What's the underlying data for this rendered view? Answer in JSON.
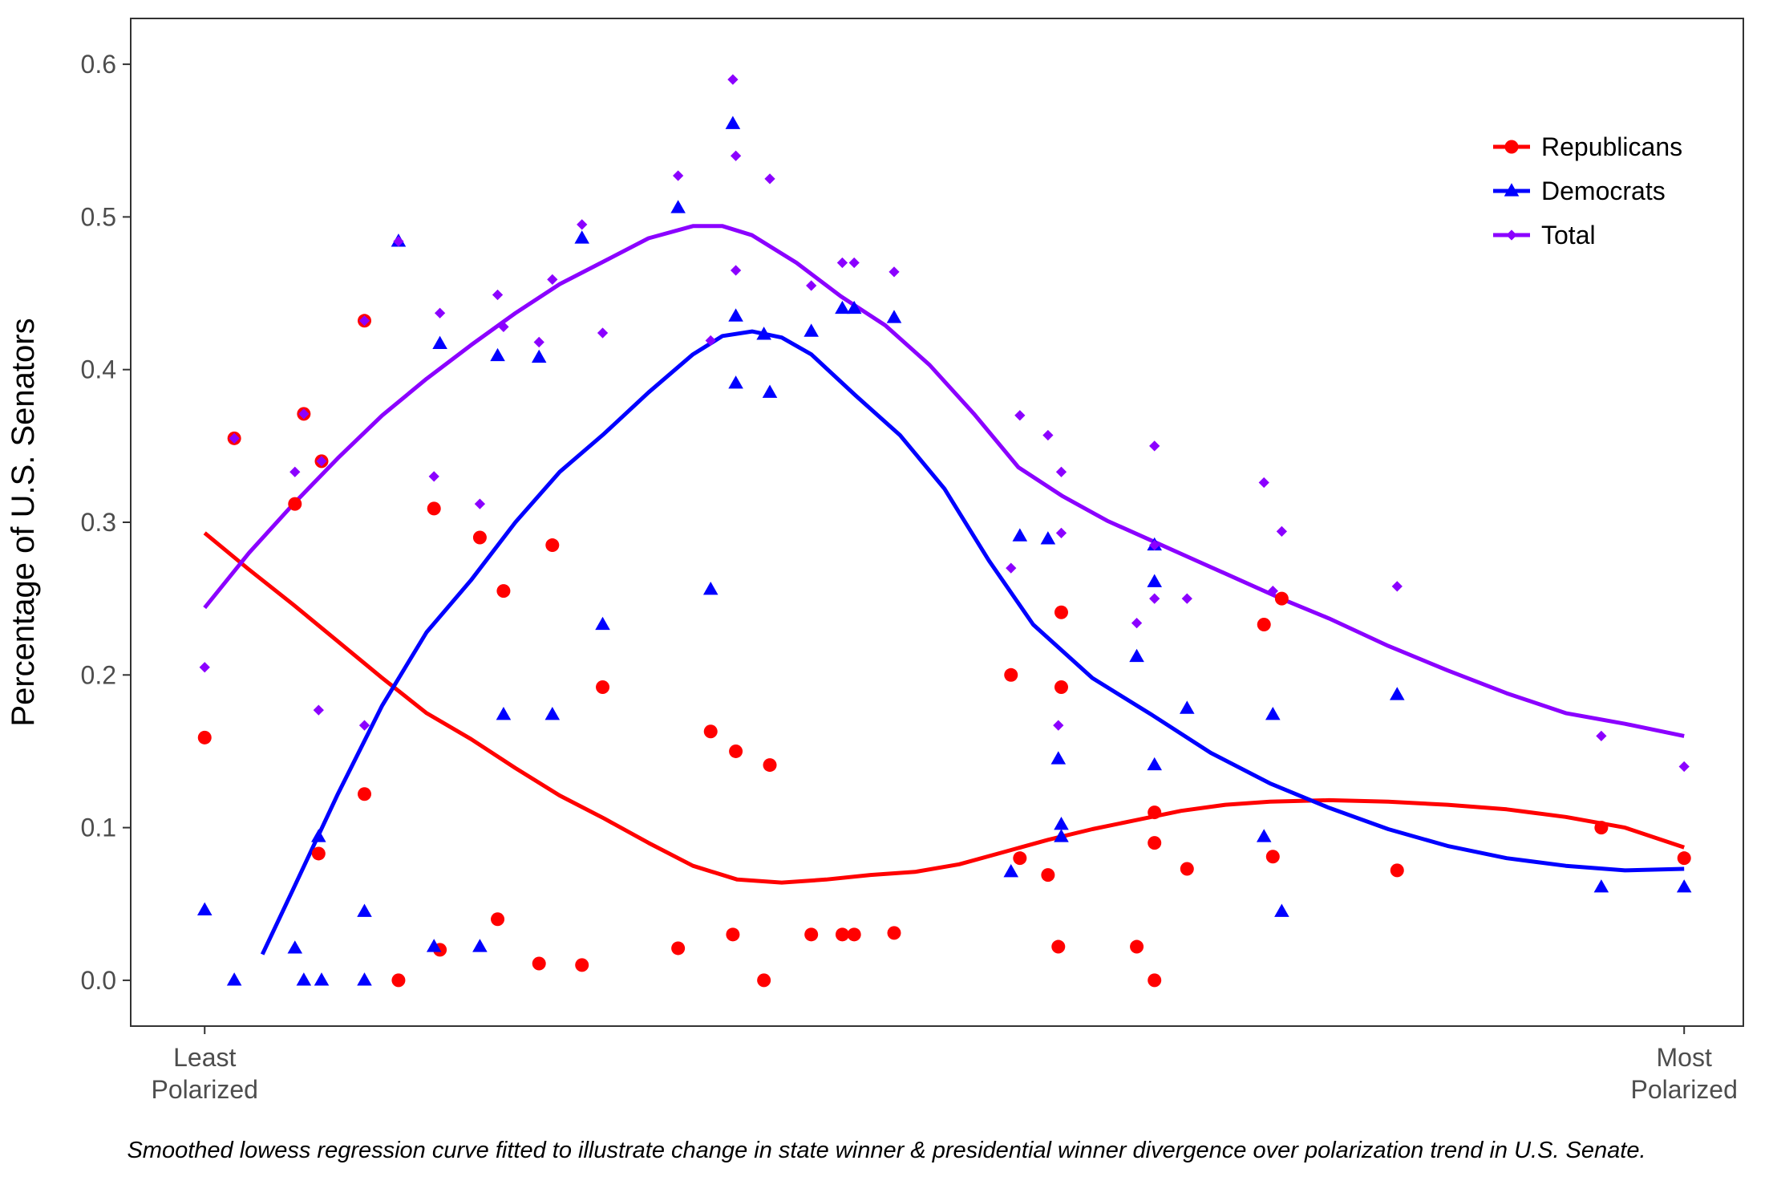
{
  "caption": "Smoothed lowess regression curve fitted to illustrate change in state winner & presidential winner divergence over polarization trend in U.S. Senate.",
  "colors": {
    "Republicans": "#ff0000",
    "Democrats": "#0000ff",
    "Total": "#8b00ff"
  },
  "chart_data": {
    "type": "scatter",
    "title": "",
    "ylabel": "Percentage of U.S. Senators",
    "xlabel": "",
    "x_tick_labels": [
      {
        "x": 0,
        "lines": [
          "Least",
          "Polarized"
        ]
      },
      {
        "x": 1,
        "lines": [
          "Most",
          "Polarized"
        ]
      }
    ],
    "xlim": [
      -0.05,
      1.04
    ],
    "ylim": [
      -0.03,
      0.63
    ],
    "yticks": [
      0.0,
      0.1,
      0.2,
      0.3,
      0.4,
      0.5,
      0.6
    ],
    "ytick_labels": [
      "0.0",
      "0.1",
      "0.2",
      "0.3",
      "0.4",
      "0.5",
      "0.6"
    ],
    "grid": false,
    "legend_position": "top-right",
    "series": [
      {
        "name": "Republicans",
        "marker": "circle",
        "points": [
          [
            0.0,
            0.159
          ],
          [
            0.02,
            0.355
          ],
          [
            0.061,
            0.312
          ],
          [
            0.067,
            0.371
          ],
          [
            0.077,
            0.083
          ],
          [
            0.079,
            0.34
          ],
          [
            0.108,
            0.432
          ],
          [
            0.108,
            0.122
          ],
          [
            0.131,
            0.0
          ],
          [
            0.155,
            0.309
          ],
          [
            0.159,
            0.02
          ],
          [
            0.186,
            0.29
          ],
          [
            0.198,
            0.04
          ],
          [
            0.202,
            0.255
          ],
          [
            0.226,
            0.011
          ],
          [
            0.235,
            0.285
          ],
          [
            0.255,
            0.01
          ],
          [
            0.269,
            0.192
          ],
          [
            0.32,
            0.021
          ],
          [
            0.342,
            0.163
          ],
          [
            0.357,
            0.03
          ],
          [
            0.359,
            0.15
          ],
          [
            0.378,
            0.0
          ],
          [
            0.382,
            0.141
          ],
          [
            0.41,
            0.03
          ],
          [
            0.431,
            0.03
          ],
          [
            0.439,
            0.03
          ],
          [
            0.466,
            0.031
          ],
          [
            0.545,
            0.2
          ],
          [
            0.551,
            0.08
          ],
          [
            0.57,
            0.069
          ],
          [
            0.577,
            0.022
          ],
          [
            0.579,
            0.241
          ],
          [
            0.579,
            0.192
          ],
          [
            0.63,
            0.022
          ],
          [
            0.642,
            0.11
          ],
          [
            0.642,
            0.09
          ],
          [
            0.642,
            0.0
          ],
          [
            0.664,
            0.073
          ],
          [
            0.716,
            0.233
          ],
          [
            0.722,
            0.081
          ],
          [
            0.728,
            0.25
          ],
          [
            0.806,
            0.072
          ],
          [
            0.944,
            0.1
          ],
          [
            1.0,
            0.08
          ]
        ],
        "smooth": [
          [
            0.0,
            0.293
          ],
          [
            0.03,
            0.269
          ],
          [
            0.06,
            0.246
          ],
          [
            0.09,
            0.222
          ],
          [
            0.12,
            0.198
          ],
          [
            0.15,
            0.175
          ],
          [
            0.18,
            0.158
          ],
          [
            0.21,
            0.139
          ],
          [
            0.24,
            0.121
          ],
          [
            0.27,
            0.106
          ],
          [
            0.3,
            0.09
          ],
          [
            0.33,
            0.075
          ],
          [
            0.36,
            0.066
          ],
          [
            0.39,
            0.064
          ],
          [
            0.42,
            0.066
          ],
          [
            0.45,
            0.069
          ],
          [
            0.48,
            0.071
          ],
          [
            0.51,
            0.076
          ],
          [
            0.54,
            0.084
          ],
          [
            0.57,
            0.092
          ],
          [
            0.6,
            0.099
          ],
          [
            0.63,
            0.105
          ],
          [
            0.66,
            0.111
          ],
          [
            0.69,
            0.115
          ],
          [
            0.72,
            0.117
          ],
          [
            0.76,
            0.118
          ],
          [
            0.8,
            0.117
          ],
          [
            0.84,
            0.115
          ],
          [
            0.88,
            0.112
          ],
          [
            0.92,
            0.107
          ],
          [
            0.96,
            0.1
          ],
          [
            1.0,
            0.087
          ]
        ]
      },
      {
        "name": "Democrats",
        "marker": "triangle",
        "points": [
          [
            0.0,
            0.046
          ],
          [
            0.02,
            0.0
          ],
          [
            0.061,
            0.021
          ],
          [
            0.067,
            0.0
          ],
          [
            0.077,
            0.094
          ],
          [
            0.079,
            0.0
          ],
          [
            0.108,
            0.045
          ],
          [
            0.108,
            0.0
          ],
          [
            0.131,
            0.484
          ],
          [
            0.155,
            0.022
          ],
          [
            0.159,
            0.417
          ],
          [
            0.186,
            0.022
          ],
          [
            0.198,
            0.409
          ],
          [
            0.202,
            0.174
          ],
          [
            0.226,
            0.408
          ],
          [
            0.235,
            0.174
          ],
          [
            0.255,
            0.486
          ],
          [
            0.269,
            0.233
          ],
          [
            0.32,
            0.506
          ],
          [
            0.342,
            0.256
          ],
          [
            0.357,
            0.561
          ],
          [
            0.359,
            0.435
          ],
          [
            0.359,
            0.391
          ],
          [
            0.378,
            0.423
          ],
          [
            0.382,
            0.385
          ],
          [
            0.41,
            0.425
          ],
          [
            0.431,
            0.44
          ],
          [
            0.439,
            0.44
          ],
          [
            0.466,
            0.434
          ],
          [
            0.545,
            0.071
          ],
          [
            0.551,
            0.291
          ],
          [
            0.57,
            0.289
          ],
          [
            0.577,
            0.145
          ],
          [
            0.579,
            0.102
          ],
          [
            0.579,
            0.094
          ],
          [
            0.63,
            0.212
          ],
          [
            0.642,
            0.285
          ],
          [
            0.642,
            0.261
          ],
          [
            0.642,
            0.141
          ],
          [
            0.664,
            0.178
          ],
          [
            0.716,
            0.094
          ],
          [
            0.722,
            0.174
          ],
          [
            0.728,
            0.045
          ],
          [
            0.806,
            0.187
          ],
          [
            0.944,
            0.061
          ],
          [
            1.0,
            0.061
          ]
        ],
        "smooth": [
          [
            0.039,
            0.017
          ],
          [
            0.06,
            0.06
          ],
          [
            0.09,
            0.122
          ],
          [
            0.12,
            0.18
          ],
          [
            0.15,
            0.228
          ],
          [
            0.18,
            0.262
          ],
          [
            0.21,
            0.3
          ],
          [
            0.24,
            0.333
          ],
          [
            0.27,
            0.358
          ],
          [
            0.3,
            0.385
          ],
          [
            0.33,
            0.41
          ],
          [
            0.35,
            0.422
          ],
          [
            0.37,
            0.425
          ],
          [
            0.39,
            0.421
          ],
          [
            0.41,
            0.41
          ],
          [
            0.44,
            0.383
          ],
          [
            0.47,
            0.357
          ],
          [
            0.5,
            0.322
          ],
          [
            0.53,
            0.275
          ],
          [
            0.56,
            0.233
          ],
          [
            0.6,
            0.198
          ],
          [
            0.64,
            0.174
          ],
          [
            0.68,
            0.149
          ],
          [
            0.72,
            0.129
          ],
          [
            0.76,
            0.113
          ],
          [
            0.8,
            0.099
          ],
          [
            0.84,
            0.088
          ],
          [
            0.88,
            0.08
          ],
          [
            0.92,
            0.075
          ],
          [
            0.96,
            0.072
          ],
          [
            1.0,
            0.073
          ]
        ]
      },
      {
        "name": "Total",
        "marker": "diamond",
        "points": [
          [
            0.0,
            0.205
          ],
          [
            0.02,
            0.355
          ],
          [
            0.061,
            0.333
          ],
          [
            0.067,
            0.371
          ],
          [
            0.077,
            0.177
          ],
          [
            0.079,
            0.34
          ],
          [
            0.108,
            0.432
          ],
          [
            0.108,
            0.167
          ],
          [
            0.131,
            0.484
          ],
          [
            0.155,
            0.33
          ],
          [
            0.159,
            0.437
          ],
          [
            0.186,
            0.312
          ],
          [
            0.198,
            0.449
          ],
          [
            0.202,
            0.428
          ],
          [
            0.226,
            0.418
          ],
          [
            0.235,
            0.459
          ],
          [
            0.255,
            0.495
          ],
          [
            0.269,
            0.424
          ],
          [
            0.32,
            0.527
          ],
          [
            0.342,
            0.419
          ],
          [
            0.357,
            0.59
          ],
          [
            0.359,
            0.465
          ],
          [
            0.359,
            0.54
          ],
          [
            0.382,
            0.525
          ],
          [
            0.41,
            0.455
          ],
          [
            0.431,
            0.47
          ],
          [
            0.439,
            0.47
          ],
          [
            0.466,
            0.464
          ],
          [
            0.545,
            0.27
          ],
          [
            0.551,
            0.37
          ],
          [
            0.57,
            0.357
          ],
          [
            0.577,
            0.167
          ],
          [
            0.579,
            0.333
          ],
          [
            0.579,
            0.293
          ],
          [
            0.63,
            0.234
          ],
          [
            0.642,
            0.35
          ],
          [
            0.642,
            0.285
          ],
          [
            0.642,
            0.25
          ],
          [
            0.664,
            0.25
          ],
          [
            0.716,
            0.326
          ],
          [
            0.722,
            0.255
          ],
          [
            0.728,
            0.294
          ],
          [
            0.806,
            0.258
          ],
          [
            0.944,
            0.16
          ],
          [
            1.0,
            0.14
          ]
        ],
        "smooth": [
          [
            0.0,
            0.244
          ],
          [
            0.03,
            0.28
          ],
          [
            0.06,
            0.312
          ],
          [
            0.09,
            0.342
          ],
          [
            0.12,
            0.37
          ],
          [
            0.15,
            0.394
          ],
          [
            0.18,
            0.416
          ],
          [
            0.21,
            0.437
          ],
          [
            0.24,
            0.456
          ],
          [
            0.27,
            0.471
          ],
          [
            0.3,
            0.486
          ],
          [
            0.33,
            0.494
          ],
          [
            0.35,
            0.494
          ],
          [
            0.37,
            0.488
          ],
          [
            0.4,
            0.47
          ],
          [
            0.43,
            0.448
          ],
          [
            0.46,
            0.429
          ],
          [
            0.49,
            0.403
          ],
          [
            0.52,
            0.371
          ],
          [
            0.55,
            0.336
          ],
          [
            0.58,
            0.317
          ],
          [
            0.61,
            0.301
          ],
          [
            0.64,
            0.288
          ],
          [
            0.67,
            0.275
          ],
          [
            0.7,
            0.262
          ],
          [
            0.73,
            0.249
          ],
          [
            0.76,
            0.237
          ],
          [
            0.8,
            0.219
          ],
          [
            0.84,
            0.203
          ],
          [
            0.88,
            0.188
          ],
          [
            0.92,
            0.175
          ],
          [
            0.96,
            0.168
          ],
          [
            1.0,
            0.16
          ]
        ]
      }
    ]
  }
}
